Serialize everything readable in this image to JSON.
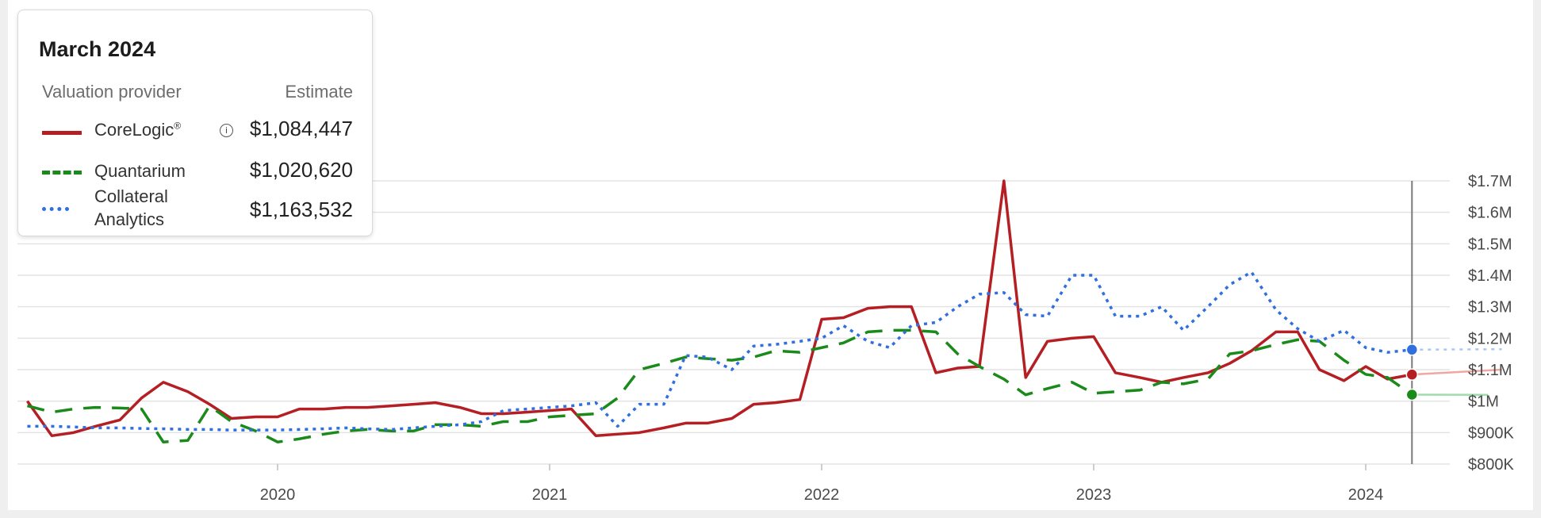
{
  "tooltip": {
    "title": "March 2024",
    "header_provider": "Valuation provider",
    "header_estimate": "Estimate",
    "rows": [
      {
        "name": "CoreLogic",
        "name_suffix": "®",
        "estimate": "$1,084,447",
        "color": "#b51f24",
        "style": "solid",
        "info_icon": "info-icon"
      },
      {
        "name": "Quantarium",
        "estimate": "$1,020,620",
        "color": "#1a8a1a",
        "style": "dashed"
      },
      {
        "name_line1": "Collateral",
        "name_line2": "Analytics",
        "estimate": "$1,163,532",
        "color": "#2f6fe0",
        "style": "dotted"
      }
    ]
  },
  "chart_data": {
    "type": "line",
    "x_ticks": [
      2020,
      2021,
      2022,
      2023,
      2024
    ],
    "x_tick_labels": [
      "2020",
      "2021",
      "2022",
      "2023",
      "2024"
    ],
    "xlim": [
      2019.08,
      2024.68
    ],
    "ylim": [
      800000,
      1700000
    ],
    "y_ticks": [
      800000,
      900000,
      1000000,
      1100000,
      1200000,
      1300000,
      1400000,
      1500000,
      1600000,
      1700000
    ],
    "y_tick_labels": [
      "$800K",
      "$900K",
      "$1M",
      "$1.1M",
      "$1.2M",
      "$1.3M",
      "$1.4M",
      "$1.5M",
      "$1.6M",
      "$1.7M"
    ],
    "grid": true,
    "crosshair_x": 2024.17,
    "y_axis_position": "right",
    "series": [
      {
        "name": "CoreLogic",
        "color": "#b51f24",
        "style": "solid",
        "x": [
          2019.08,
          2019.17,
          2019.25,
          2019.33,
          2019.42,
          2019.5,
          2019.58,
          2019.67,
          2019.75,
          2019.83,
          2019.92,
          2020.0,
          2020.08,
          2020.17,
          2020.25,
          2020.33,
          2020.42,
          2020.5,
          2020.58,
          2020.67,
          2020.75,
          2020.83,
          2020.92,
          2021.0,
          2021.08,
          2021.17,
          2021.25,
          2021.33,
          2021.42,
          2021.5,
          2021.58,
          2021.67,
          2021.75,
          2021.83,
          2021.92,
          2022.0,
          2022.08,
          2022.17,
          2022.25,
          2022.33,
          2022.42,
          2022.5,
          2022.58,
          2022.67,
          2022.75,
          2022.83,
          2022.92,
          2023.0,
          2023.08,
          2023.17,
          2023.25,
          2023.33,
          2023.42,
          2023.5,
          2023.58,
          2023.67,
          2023.75,
          2023.83,
          2023.92,
          2024.0,
          2024.08,
          2024.17
        ],
        "values": [
          1000000,
          890000,
          900000,
          920000,
          940000,
          1010000,
          1060000,
          1030000,
          990000,
          945000,
          950000,
          950000,
          975000,
          975000,
          980000,
          980000,
          985000,
          990000,
          995000,
          980000,
          960000,
          960000,
          965000,
          970000,
          975000,
          890000,
          895000,
          900000,
          915000,
          930000,
          930000,
          945000,
          990000,
          995000,
          1005000,
          1260000,
          1265000,
          1295000,
          1300000,
          1300000,
          1090000,
          1105000,
          1110000,
          1700000,
          1075000,
          1190000,
          1200000,
          1205000,
          1090000,
          1075000,
          1060000,
          1075000,
          1090000,
          1120000,
          1160000,
          1220000,
          1220000,
          1100000,
          1065000,
          1110000,
          1070000,
          1084447
        ]
      },
      {
        "name": "Quantarium",
        "color": "#1a8a1a",
        "style": "dashed",
        "x": [
          2019.08,
          2019.17,
          2019.25,
          2019.33,
          2019.42,
          2019.5,
          2019.58,
          2019.67,
          2019.75,
          2019.83,
          2019.92,
          2020.0,
          2020.08,
          2020.17,
          2020.25,
          2020.33,
          2020.42,
          2020.5,
          2020.58,
          2020.67,
          2020.75,
          2020.83,
          2020.92,
          2021.0,
          2021.08,
          2021.17,
          2021.25,
          2021.33,
          2021.42,
          2021.5,
          2021.58,
          2021.67,
          2021.75,
          2021.83,
          2021.92,
          2022.0,
          2022.08,
          2022.17,
          2022.25,
          2022.33,
          2022.42,
          2022.5,
          2022.58,
          2022.67,
          2022.75,
          2022.83,
          2022.92,
          2023.0,
          2023.08,
          2023.17,
          2023.25,
          2023.33,
          2023.42,
          2023.5,
          2023.58,
          2023.67,
          2023.75,
          2023.83,
          2023.92,
          2024.0,
          2024.08,
          2024.17
        ],
        "values": [
          985000,
          965000,
          975000,
          980000,
          978000,
          975000,
          870000,
          875000,
          985000,
          935000,
          905000,
          870000,
          880000,
          895000,
          905000,
          910000,
          905000,
          905000,
          925000,
          925000,
          920000,
          935000,
          935000,
          950000,
          955000,
          960000,
          1010000,
          1100000,
          1120000,
          1140000,
          1135000,
          1130000,
          1140000,
          1160000,
          1155000,
          1170000,
          1185000,
          1220000,
          1225000,
          1225000,
          1220000,
          1150000,
          1110000,
          1070000,
          1020000,
          1040000,
          1060000,
          1025000,
          1030000,
          1035000,
          1060000,
          1055000,
          1070000,
          1150000,
          1160000,
          1180000,
          1195000,
          1190000,
          1130000,
          1085000,
          1075000,
          1020620
        ]
      },
      {
        "name": "Collateral Analytics",
        "color": "#2f6fe0",
        "style": "dotted",
        "x": [
          2019.08,
          2019.17,
          2019.25,
          2019.33,
          2019.42,
          2019.5,
          2019.58,
          2019.67,
          2019.75,
          2019.83,
          2019.92,
          2020.0,
          2020.08,
          2020.17,
          2020.25,
          2020.33,
          2020.42,
          2020.5,
          2020.58,
          2020.67,
          2020.75,
          2020.83,
          2020.92,
          2021.0,
          2021.08,
          2021.17,
          2021.25,
          2021.33,
          2021.42,
          2021.5,
          2021.58,
          2021.67,
          2021.75,
          2021.83,
          2021.92,
          2022.0,
          2022.08,
          2022.17,
          2022.25,
          2022.33,
          2022.42,
          2022.5,
          2022.58,
          2022.67,
          2022.75,
          2022.83,
          2022.92,
          2023.0,
          2023.08,
          2023.17,
          2023.25,
          2023.33,
          2023.42,
          2023.5,
          2023.58,
          2023.67,
          2023.75,
          2023.83,
          2023.92,
          2024.0,
          2024.08,
          2024.17
        ],
        "values": [
          920000,
          920000,
          918000,
          915000,
          915000,
          913000,
          912000,
          910000,
          910000,
          908000,
          908000,
          908000,
          910000,
          912000,
          915000,
          912000,
          910000,
          915000,
          920000,
          925000,
          935000,
          970000,
          975000,
          980000,
          985000,
          995000,
          920000,
          990000,
          990000,
          1145000,
          1140000,
          1100000,
          1175000,
          1180000,
          1190000,
          1200000,
          1240000,
          1190000,
          1170000,
          1240000,
          1250000,
          1300000,
          1340000,
          1345000,
          1275000,
          1270000,
          1400000,
          1400000,
          1270000,
          1270000,
          1300000,
          1225000,
          1300000,
          1370000,
          1410000,
          1290000,
          1230000,
          1190000,
          1225000,
          1170000,
          1155000,
          1163532
        ]
      }
    ],
    "projections": [
      {
        "series": "CoreLogic",
        "x": [
          2024.17,
          2024.5
        ],
        "values": [
          1084447,
          1100000
        ],
        "color": "#f1a6a0"
      },
      {
        "series": "Quantarium",
        "x": [
          2024.17,
          2024.45
        ],
        "values": [
          1020620,
          1020000
        ],
        "color": "#9fdcac"
      },
      {
        "series": "Collateral Analytics",
        "x": [
          2024.17,
          2024.5
        ],
        "values": [
          1163532,
          1165000
        ],
        "color": "#a9c6f5"
      }
    ]
  }
}
